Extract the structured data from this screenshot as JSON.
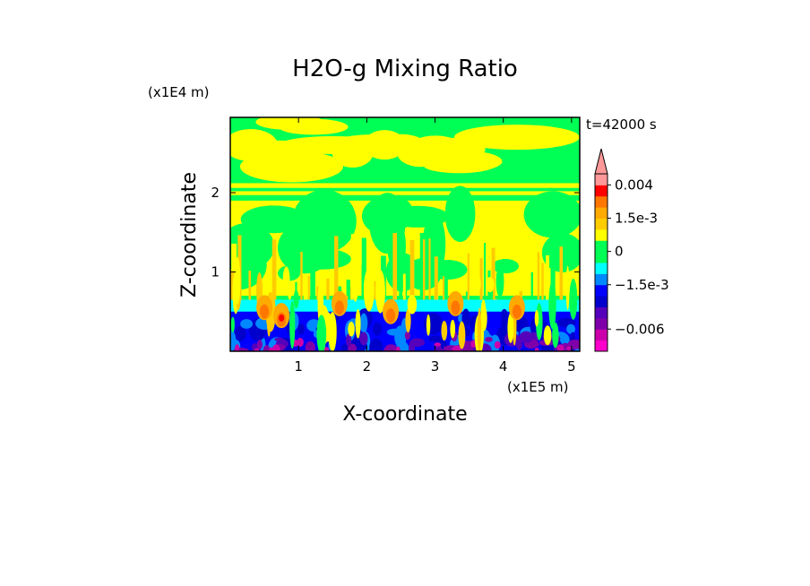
{
  "chart_data": {
    "type": "heatmap",
    "title": "H2O-g Mixing Ratio",
    "xlabel": "X-coordinate",
    "ylabel": "Z-coordinate",
    "x_unit": "(x1E5 m)",
    "y_unit": "(x1E4 m)",
    "time_label": "t=42000 s",
    "xlim": [
      0,
      5.12
    ],
    "ylim": [
      0,
      2.95
    ],
    "x_ticks": [
      1,
      2,
      3,
      4,
      5
    ],
    "y_ticks": [
      1,
      2
    ],
    "colorbar": {
      "tick_labels": [
        "0.004",
        "1.5e-3",
        "0",
        "−1.5e-3",
        "−0.006"
      ],
      "tick_values": [
        0.004,
        0.0015,
        0,
        -0.0015,
        -0.006
      ],
      "levels_low_to_high": [
        -0.009,
        -0.0075,
        -0.006,
        -0.0045,
        -0.003,
        -0.002,
        -0.0015,
        -0.001,
        -0.0005,
        0,
        0.0005,
        0.001,
        0.0015,
        0.002,
        0.003,
        0.004,
        0.005
      ],
      "colors_low_to_high": [
        "#ff00cc",
        "#cc00aa",
        "#7f00aa",
        "#5500bb",
        "#0000cc",
        "#0000ff",
        "#0088ff",
        "#00ffff",
        "#00ff55",
        "#00ff55",
        "#ffff00",
        "#ffcc00",
        "#ffaa00",
        "#ff7700",
        "#ff0000",
        "#ff9999"
      ],
      "extend_top": true
    },
    "layers": [
      {
        "z_range": [
          2.2,
          2.95
        ],
        "dominant": "0 to 5e-4",
        "secondary": "5e-4 to 1e-3"
      },
      {
        "z_range": [
          1.95,
          2.2
        ],
        "dominant": "5e-4 to 1e-3",
        "secondary": "0 to 5e-4"
      },
      {
        "z_range": [
          0.65,
          1.95
        ],
        "dominant": "0 to 1e-3",
        "secondary": "1e-3 to 2e-3"
      },
      {
        "z_range": [
          0.45,
          0.65
        ],
        "dominant": "-1e-3 to -5e-4",
        "secondary": "1.5e-3 to 3e-3"
      },
      {
        "z_range": [
          0,
          0.45
        ],
        "dominant": "-3e-3 to -1.5e-3",
        "secondary": "-0.0075 to -0.0045"
      }
    ]
  }
}
